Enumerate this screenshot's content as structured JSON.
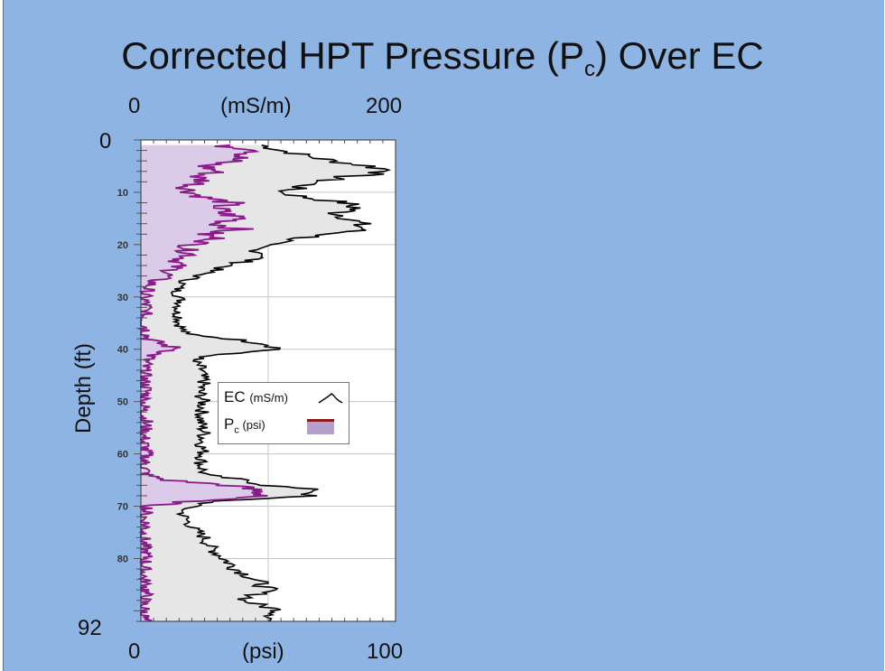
{
  "slide": {
    "title_main": "Corrected HPT Pressure (P",
    "title_sub": "c",
    "title_end": ") Over EC"
  },
  "chart_data": {
    "type": "line",
    "title": "Corrected HPT Pressure (Pc) Over EC",
    "top_axis": {
      "unit_label": "(mS/m)",
      "min_label": "0",
      "max_label": "200",
      "range": [
        0,
        200
      ]
    },
    "bottom_axis": {
      "unit_label": "(psi)",
      "min_label": "0",
      "max_label": "100",
      "range": [
        0,
        100
      ]
    },
    "ylabel": "Depth (ft)",
    "yrange": [
      0,
      92
    ],
    "y_top_label": "0",
    "y_bottom_label": "92",
    "y_ticks": [
      "10",
      "20",
      "30",
      "40",
      "50",
      "60",
      "70",
      "80"
    ],
    "grid": true,
    "legend_position": "center-right",
    "colors": {
      "ec_line": "#000000",
      "ec_fill": "#e6e6e6",
      "pc_line": "#8a1a8a",
      "pc_fill": "#d9c6e8",
      "legend_pc_bar": "#8b1a1a",
      "legend_pc_fill": "#b3a0cc"
    },
    "series": [
      {
        "name": "EC (mS/m)",
        "axis": "top",
        "depth": [
          1,
          2,
          3,
          4,
          5,
          6,
          7,
          8,
          9,
          10,
          11,
          12,
          13,
          14,
          15,
          16,
          17,
          18,
          19,
          20,
          21,
          22,
          23,
          24,
          25,
          26,
          27,
          28,
          29,
          30,
          31,
          32,
          33,
          34,
          35,
          36,
          37,
          38,
          39,
          40,
          41,
          42,
          43,
          44,
          45,
          46,
          48,
          50,
          52,
          54,
          56,
          58,
          60,
          62,
          64,
          65,
          66,
          67,
          68,
          69,
          70,
          71,
          72,
          74,
          76,
          78,
          80,
          82,
          84,
          86,
          87,
          88,
          89,
          90,
          91,
          92
        ],
        "values": [
          95,
          110,
          130,
          150,
          180,
          200,
          160,
          140,
          125,
          110,
          130,
          160,
          170,
          155,
          165,
          170,
          175,
          150,
          120,
          95,
          90,
          100,
          85,
          70,
          55,
          45,
          35,
          30,
          28,
          30,
          32,
          30,
          28,
          31,
          30,
          32,
          34,
          70,
          100,
          110,
          60,
          40,
          45,
          48,
          47,
          50,
          46,
          49,
          48,
          47,
          50,
          48,
          49,
          47,
          50,
          80,
          100,
          140,
          130,
          60,
          40,
          32,
          34,
          40,
          50,
          55,
          65,
          75,
          90,
          100,
          90,
          80,
          95,
          110,
          105,
          100
        ]
      },
      {
        "name": "Pc (psi)",
        "axis": "bottom",
        "depth": [
          1,
          2,
          3,
          4,
          5,
          6,
          7,
          8,
          9,
          10,
          11,
          12,
          13,
          14,
          15,
          16,
          17,
          18,
          19,
          20,
          21,
          22,
          23,
          24,
          25,
          26,
          27,
          28,
          29,
          30,
          32,
          34,
          36,
          38,
          39,
          40,
          41,
          42,
          44,
          46,
          48,
          50,
          52,
          54,
          56,
          58,
          60,
          62,
          64,
          65,
          66,
          67,
          68,
          69,
          70,
          72,
          74,
          76,
          78,
          80,
          82,
          84,
          86,
          88,
          90,
          92
        ],
        "values": [
          30,
          50,
          40,
          35,
          25,
          30,
          22,
          25,
          18,
          20,
          25,
          35,
          30,
          32,
          40,
          30,
          38,
          25,
          30,
          20,
          18,
          20,
          15,
          14,
          12,
          10,
          5,
          3,
          2,
          1,
          2,
          1,
          2,
          3,
          8,
          15,
          5,
          2,
          1,
          1,
          2,
          1,
          1,
          2,
          1,
          1,
          2,
          1,
          2,
          10,
          35,
          45,
          50,
          20,
          3,
          1,
          2,
          1,
          1,
          2,
          1,
          1,
          2,
          1,
          1,
          1
        ]
      }
    ]
  },
  "legend": {
    "ec_label": "EC ",
    "ec_unit": "(mS/m)",
    "pc_label": "P",
    "pc_sub": "c",
    "pc_unit": " (psi)"
  }
}
